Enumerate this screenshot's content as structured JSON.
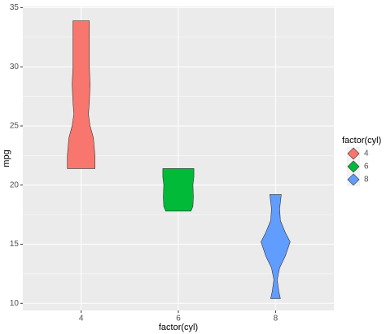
{
  "chart_data": {
    "type": "violin",
    "x_label": "factor(cyl)",
    "y_label": "mpg",
    "legend_title": "factor(cyl)",
    "categories": [
      "4",
      "6",
      "8"
    ],
    "series": [
      {
        "name": "4",
        "color": "#F8766D",
        "y": [
          21.4,
          22.5,
          24,
          25,
          26,
          27,
          28.5,
          30,
          31.5,
          33,
          33.9
        ],
        "width": [
          0.142,
          0.142,
          0.126,
          0.092,
          0.075,
          0.084,
          0.092,
          0.084,
          0.084,
          0.084,
          0.084
        ]
      },
      {
        "name": "6",
        "color": "#00BA38",
        "y": [
          17.8,
          18.2,
          19,
          20,
          20.7,
          21.4
        ],
        "width": [
          0.13,
          0.15,
          0.155,
          0.15,
          0.16,
          0.16
        ]
      },
      {
        "name": "8",
        "color": "#619CFF",
        "y": [
          10.4,
          11,
          12,
          13,
          14,
          15.2,
          16,
          17,
          18,
          19.2
        ],
        "width": [
          0.05,
          0.034,
          0.017,
          0.042,
          0.1,
          0.15,
          0.1,
          0.05,
          0.042,
          0.059
        ]
      }
    ],
    "ylim": [
      9.4,
      35.1
    ],
    "yticks": [
      10,
      15,
      20,
      25,
      30,
      35
    ],
    "grid": true,
    "legend_position": "right"
  }
}
